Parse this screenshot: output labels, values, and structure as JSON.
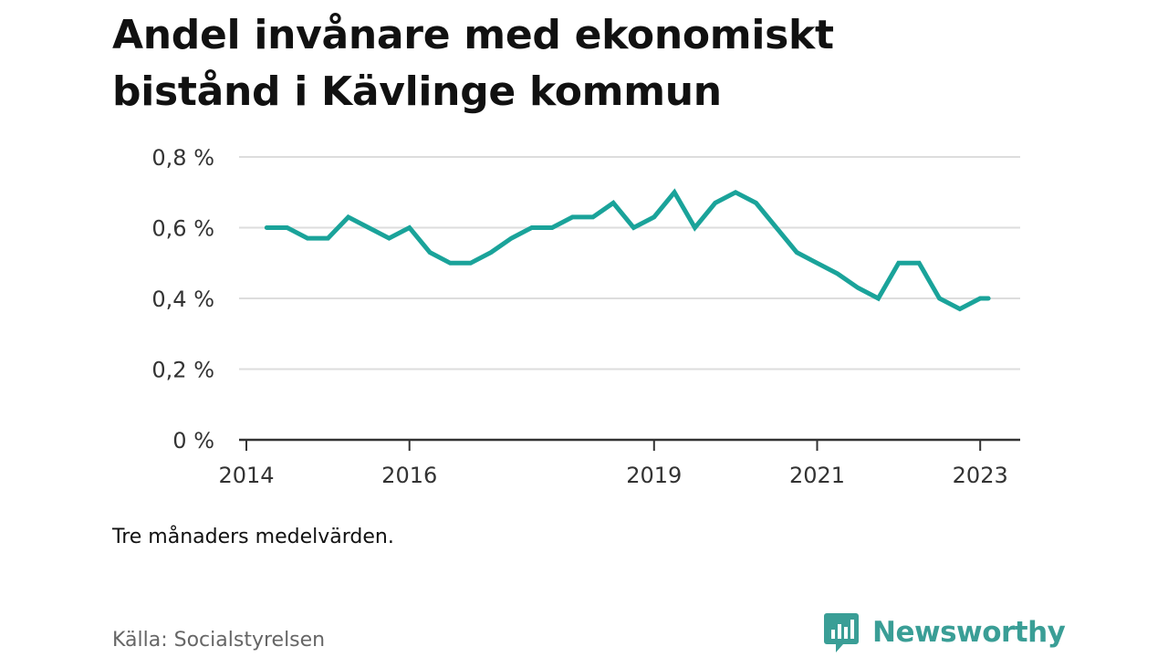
{
  "title_lines": [
    "Andel invånare med ekonomiskt",
    "bistånd i Kävlinge kommun"
  ],
  "note": "Tre månaders medelvärden.",
  "source": "Källa: Socialstyrelsen",
  "brand": {
    "name": "Newsworthy",
    "icon": "bar-chart-speech-bubble-icon"
  },
  "colors": {
    "line": "#1aa39a",
    "grid": "#dddddd",
    "axis": "#333333",
    "brand": "#3a9e96"
  },
  "chart_data": {
    "type": "line",
    "title": "Andel invånare med ekonomiskt bistånd i Kävlinge kommun",
    "ylim": [
      0,
      0.8
    ],
    "xlim": [
      2014.0,
      2023.25
    ],
    "grid": true,
    "legend": "none",
    "y_ticks": [
      {
        "value": 0,
        "label": "0 %"
      },
      {
        "value": 0.2,
        "label": "0,2 %"
      },
      {
        "value": 0.4,
        "label": "0,4 %"
      },
      {
        "value": 0.6,
        "label": "0,6 %"
      },
      {
        "value": 0.8,
        "label": "0,8 %"
      }
    ],
    "x_ticks": [
      {
        "value": 2014,
        "label": "2014"
      },
      {
        "value": 2016,
        "label": "2016"
      },
      {
        "value": 2019,
        "label": "2019"
      },
      {
        "value": 2021,
        "label": "2021"
      },
      {
        "value": 2023,
        "label": "2023"
      }
    ],
    "series": [
      {
        "x": [
          2014.25,
          2014.5,
          2014.75,
          2015.0,
          2015.25,
          2015.5,
          2015.75,
          2016.0,
          2016.25,
          2016.5,
          2016.75,
          2017.0,
          2017.25,
          2017.5,
          2017.75,
          2018.0,
          2018.25,
          2018.5,
          2018.75,
          2019.0,
          2019.25,
          2019.5,
          2019.75,
          2020.0,
          2020.25,
          2020.5,
          2020.75,
          2021.0,
          2021.25,
          2021.5,
          2021.75,
          2022.0,
          2022.25,
          2022.5,
          2022.75,
          2023.0,
          2023.1
        ],
        "values": [
          0.6,
          0.6,
          0.57,
          0.57,
          0.63,
          0.6,
          0.57,
          0.6,
          0.53,
          0.5,
          0.5,
          0.53,
          0.57,
          0.6,
          0.6,
          0.63,
          0.63,
          0.67,
          0.6,
          0.63,
          0.7,
          0.6,
          0.67,
          0.7,
          0.67,
          0.6,
          0.53,
          0.5,
          0.47,
          0.43,
          0.4,
          0.5,
          0.5,
          0.4,
          0.37,
          0.4,
          0.4
        ]
      }
    ]
  }
}
